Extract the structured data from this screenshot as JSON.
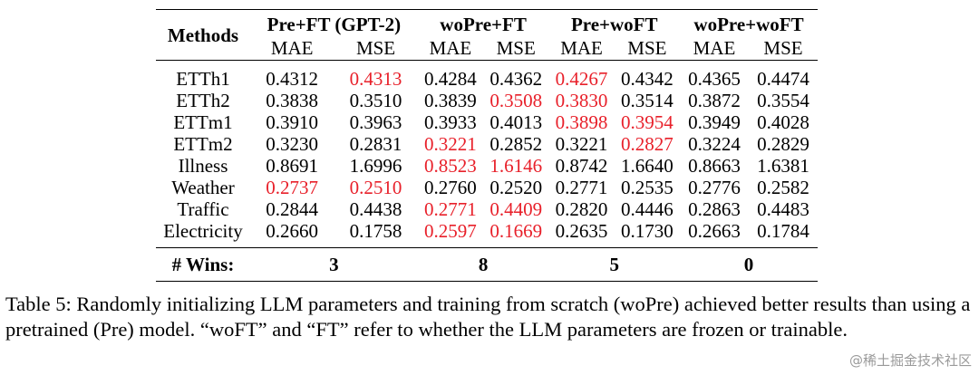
{
  "table": {
    "methods_label": "Methods",
    "groups": [
      "Pre+FT (GPT-2)",
      "woPre+FT",
      "Pre+woFT",
      "woPre+woFT"
    ],
    "subheaders": [
      "MAE",
      "MSE"
    ],
    "rows": [
      {
        "dataset": "ETTh1",
        "values": [
          "0.4312",
          "0.4313",
          "0.4284",
          "0.4362",
          "0.4267",
          "0.4342",
          "0.4365",
          "0.4474"
        ],
        "best": [
          false,
          true,
          false,
          false,
          true,
          false,
          false,
          false
        ]
      },
      {
        "dataset": "ETTh2",
        "values": [
          "0.3838",
          "0.3510",
          "0.3839",
          "0.3508",
          "0.3830",
          "0.3514",
          "0.3872",
          "0.3554"
        ],
        "best": [
          false,
          false,
          false,
          true,
          true,
          false,
          false,
          false
        ]
      },
      {
        "dataset": "ETTm1",
        "values": [
          "0.3910",
          "0.3963",
          "0.3933",
          "0.4013",
          "0.3898",
          "0.3954",
          "0.3949",
          "0.4028"
        ],
        "best": [
          false,
          false,
          false,
          false,
          true,
          true,
          false,
          false
        ]
      },
      {
        "dataset": "ETTm2",
        "values": [
          "0.3230",
          "0.2831",
          "0.3221",
          "0.2852",
          "0.3221",
          "0.2827",
          "0.3224",
          "0.2829"
        ],
        "best": [
          false,
          false,
          true,
          false,
          false,
          true,
          false,
          false
        ]
      },
      {
        "dataset": "Illness",
        "values": [
          "0.8691",
          "1.6996",
          "0.8523",
          "1.6146",
          "0.8742",
          "1.6640",
          "0.8663",
          "1.6381"
        ],
        "best": [
          false,
          false,
          true,
          true,
          false,
          false,
          false,
          false
        ]
      },
      {
        "dataset": "Weather",
        "values": [
          "0.2737",
          "0.2510",
          "0.2760",
          "0.2520",
          "0.2771",
          "0.2535",
          "0.2776",
          "0.2582"
        ],
        "best": [
          true,
          true,
          false,
          false,
          false,
          false,
          false,
          false
        ]
      },
      {
        "dataset": "Traffic",
        "values": [
          "0.2844",
          "0.4438",
          "0.2771",
          "0.4409",
          "0.2820",
          "0.4446",
          "0.2863",
          "0.4483"
        ],
        "best": [
          false,
          false,
          true,
          true,
          false,
          false,
          false,
          false
        ]
      },
      {
        "dataset": "Electricity",
        "values": [
          "0.2660",
          "0.1758",
          "0.2597",
          "0.1669",
          "0.2635",
          "0.1730",
          "0.2663",
          "0.1784"
        ],
        "best": [
          false,
          false,
          true,
          true,
          false,
          false,
          false,
          false
        ]
      }
    ],
    "wins_label": "# Wins:",
    "wins": [
      "3",
      "8",
      "5",
      "0"
    ]
  },
  "caption": "Table 5: Randomly initializing LLM parameters and training from scratch (woPre) achieved better results than using a pretrained (Pre) model. “woFT” and “FT” refer to whether the LLM parameters are frozen or trainable.",
  "watermark": "@稀土掘金技术社区",
  "colors": {
    "best": "#e8202a",
    "text": "#000000"
  }
}
